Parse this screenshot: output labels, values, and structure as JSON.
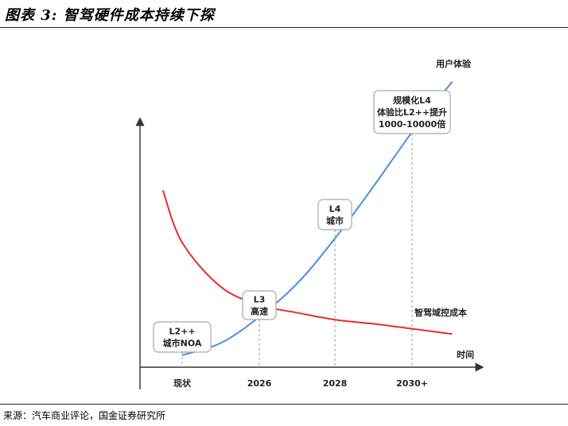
{
  "figure": {
    "title": "图表 3:  智驾硬件成本持续下探",
    "source": "来源：汽车商业评论，国金证券研究所"
  },
  "chart_data": {
    "type": "line",
    "title": "智驾硬件成本持续下探",
    "xlabel": "时间",
    "ylabel": "",
    "categories": [
      "现状",
      "2026",
      "2028",
      "2030+"
    ],
    "series": [
      {
        "name": "用户体验",
        "color": "#4a8fe0",
        "x": [
          0,
          0.5,
          1.0,
          1.5,
          2.0,
          2.5,
          3.0,
          3.5
        ],
        "values": [
          0.06,
          0.12,
          0.25,
          0.42,
          0.65,
          0.91,
          1.18,
          1.42
        ]
      },
      {
        "name": "智驾域控成本",
        "color": "#ec2b2b",
        "x": [
          -0.25,
          0,
          0.5,
          1.0,
          1.5,
          2.0,
          2.5,
          3.0,
          3.5
        ],
        "values": [
          0.88,
          0.62,
          0.4,
          0.31,
          0.27,
          0.235,
          0.215,
          0.19,
          0.165
        ]
      }
    ],
    "milestones": [
      {
        "category": "现状",
        "lines": [
          "L2++",
          "城市NOA"
        ]
      },
      {
        "category": "2026",
        "lines": [
          "L3",
          "高速"
        ]
      },
      {
        "category": "2028",
        "lines": [
          "L4",
          "城市"
        ]
      },
      {
        "category": "2030+",
        "lines": [
          "规模化L4",
          "体验比L2++提升",
          "1000-10000倍"
        ]
      }
    ]
  }
}
